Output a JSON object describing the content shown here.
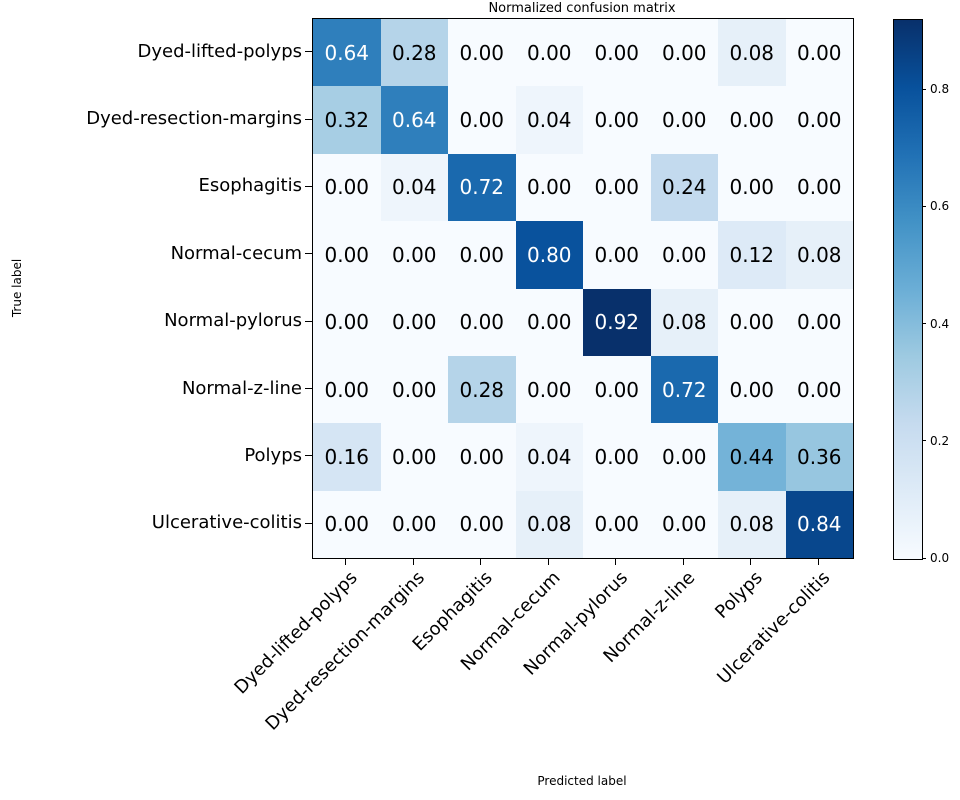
{
  "chart_data": {
    "type": "heatmap",
    "title": "Normalized confusion matrix",
    "xlabel": "Predicted label",
    "ylabel": "True label",
    "x_categories": [
      "Dyed-lifted-polyps",
      "Dyed-resection-margins",
      "Esophagitis",
      "Normal-cecum",
      "Normal-pylorus",
      "Normal-z-line",
      "Polyps",
      "Ulcerative-colitis"
    ],
    "y_categories": [
      "Dyed-lifted-polyps",
      "Dyed-resection-margins",
      "Esophagitis",
      "Normal-cecum",
      "Normal-pylorus",
      "Normal-z-line",
      "Polyps",
      "Ulcerative-colitis"
    ],
    "matrix": [
      [
        0.64,
        0.28,
        0.0,
        0.0,
        0.0,
        0.0,
        0.08,
        0.0
      ],
      [
        0.32,
        0.64,
        0.0,
        0.04,
        0.0,
        0.0,
        0.0,
        0.0
      ],
      [
        0.0,
        0.04,
        0.72,
        0.0,
        0.0,
        0.24,
        0.0,
        0.0
      ],
      [
        0.0,
        0.0,
        0.0,
        0.8,
        0.0,
        0.0,
        0.12,
        0.08
      ],
      [
        0.0,
        0.0,
        0.0,
        0.0,
        0.92,
        0.08,
        0.0,
        0.0
      ],
      [
        0.0,
        0.0,
        0.28,
        0.0,
        0.0,
        0.72,
        0.0,
        0.0
      ],
      [
        0.16,
        0.0,
        0.0,
        0.04,
        0.0,
        0.0,
        0.44,
        0.36
      ],
      [
        0.0,
        0.0,
        0.0,
        0.08,
        0.0,
        0.0,
        0.08,
        0.84
      ]
    ],
    "vmin": 0.0,
    "vmax": 0.92,
    "value_decimals": 2,
    "text_color_threshold": 0.46,
    "cell_text_colors": {
      "above_threshold": "#ffffff",
      "below_threshold": "#000000"
    },
    "colormap": {
      "name": "Blues",
      "stops": [
        "#f7fbff",
        "#deebf7",
        "#c6dbef",
        "#9ecae1",
        "#6baed6",
        "#4292c6",
        "#2171b5",
        "#08519c",
        "#08306b"
      ]
    },
    "colorbar": {
      "tick_labels": [
        "0.0",
        "0.2",
        "0.4",
        "0.6",
        "0.8"
      ],
      "tick_values": [
        0.0,
        0.2,
        0.4,
        0.6,
        0.8
      ]
    },
    "axis_color": "#000000",
    "background_color": "#ffffff"
  }
}
